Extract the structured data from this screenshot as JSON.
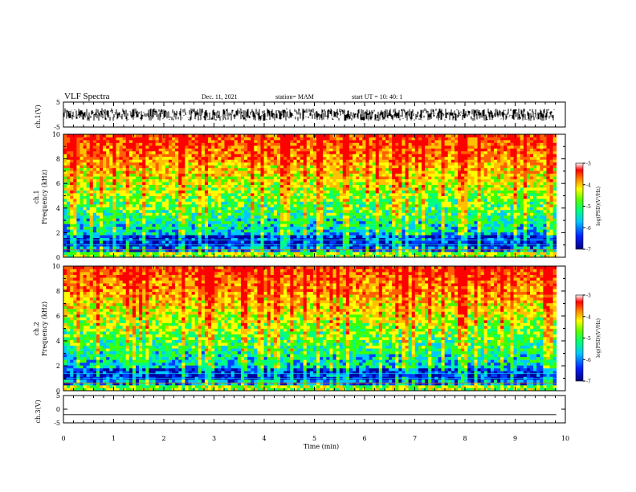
{
  "header": {
    "title": "VLF Spectra",
    "date": "Dec. 11, 2021",
    "station": "station= MAM",
    "start": "start  UT  =   10: 40: 1"
  },
  "colors": {
    "waveform": "#000000",
    "spectrogram_scale": [
      "#0000a0",
      "#0040ff",
      "#00c8ff",
      "#00ff80",
      "#40ff00",
      "#ffff00",
      "#ffc000",
      "#ff6000",
      "#ff0000",
      "#ffffff"
    ]
  },
  "chart_data": [
    {
      "type": "line",
      "name": "ch.1 waveform",
      "ylabel": "ch.1(V)",
      "ylim": [
        -5,
        5
      ],
      "yticks": [
        "5",
        "-5"
      ],
      "x_range": [
        0,
        10
      ],
      "trace_amplitude_range": [
        -2.5,
        2.5
      ]
    },
    {
      "type": "heatmap",
      "name": "ch.1 spectrogram",
      "ylabel_top": "ch.1",
      "ylabel": "Frequency  (kHz)",
      "ylim": [
        0,
        10
      ],
      "yticks": [
        "0",
        "2",
        "4",
        "6",
        "8",
        "10"
      ],
      "x_range": [
        0,
        9.82
      ],
      "colorbar": {
        "label": "log(PSD)(V²/Hz)",
        "ticks": [
          "-3",
          "-4",
          "-5",
          "-6",
          "-7"
        ],
        "range": [
          -7,
          -3
        ]
      }
    },
    {
      "type": "heatmap",
      "name": "ch.2 spectrogram",
      "ylabel_top": "ch.2",
      "ylabel": "Frequency  (kHz)",
      "ylim": [
        0,
        10
      ],
      "yticks": [
        "0",
        "2",
        "4",
        "6",
        "8",
        "10"
      ],
      "x_range": [
        0,
        9.82
      ],
      "colorbar": {
        "label": "log(PSD)(V²/Hz)",
        "ticks": [
          "-3",
          "-4",
          "-5",
          "-6",
          "-7"
        ],
        "range": [
          -7,
          -3
        ]
      }
    },
    {
      "type": "line",
      "name": "ch.3 waveform",
      "ylabel": "ch.3(V)",
      "ylim": [
        -5,
        5
      ],
      "yticks": [
        "5",
        "0",
        "-5"
      ],
      "x_range": [
        0,
        9.82
      ],
      "constant_value": -2
    }
  ],
  "xaxis": {
    "label": "Time  (min)",
    "ticks": [
      "0",
      "1",
      "2",
      "3",
      "4",
      "5",
      "6",
      "7",
      "8",
      "9",
      "10"
    ],
    "range": [
      0,
      10
    ]
  }
}
